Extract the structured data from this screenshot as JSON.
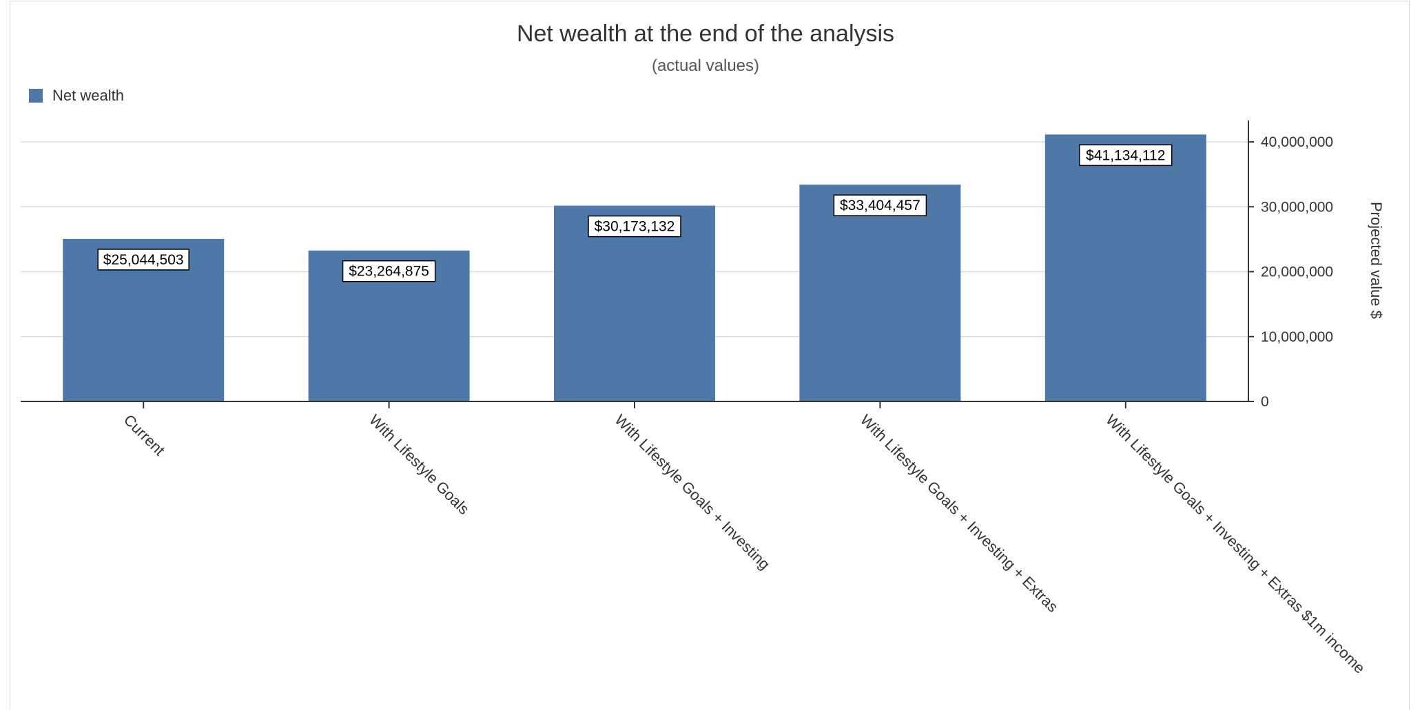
{
  "chart_data": {
    "type": "bar",
    "title": "Net wealth at the end of the analysis",
    "subtitle": "(actual values)",
    "xlabel": "",
    "ylabel": "Projected value $",
    "ylim": [
      0,
      40000000
    ],
    "yticks": [
      0,
      10000000,
      20000000,
      30000000,
      40000000
    ],
    "ytick_labels": [
      "0",
      "10,000,000",
      "20,000,000",
      "30,000,000",
      "40,000,000"
    ],
    "y_axis_side": "right",
    "grid": true,
    "legend_position": "top-left",
    "categories": [
      "Current",
      "With Lifestyle Goals",
      "With Lifestyle Goals + Investing",
      "With Lifestyle Goals + Investing + Extras",
      "With Lifestyle Goals + Investing + Extras $1m income"
    ],
    "series": [
      {
        "name": "Net wealth",
        "color": "#4e78a7",
        "values": [
          25044503,
          23264875,
          30173132,
          33404457,
          41134112
        ],
        "data_labels": [
          "$25,044,503",
          "$23,264,875",
          "$30,173,132",
          "$33,404,457",
          "$41,134,112"
        ]
      }
    ]
  }
}
